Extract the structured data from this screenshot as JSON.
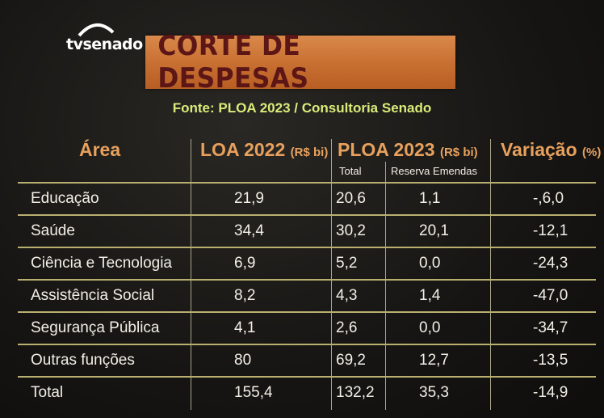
{
  "logo": {
    "text": "tvsenado"
  },
  "title": "CORTE DE DESPESAS",
  "source": "Fonte: PLOA 2023 / Consultoria Senado",
  "headers": {
    "area": "Área",
    "loa": "LOA 2022",
    "loa_unit": "(R$ bi)",
    "ploa": "PLOA 2023",
    "ploa_unit": "(R$ bi)",
    "ploa_total": "Total",
    "ploa_reserva": "Reserva Emendas",
    "variacao": "Variação",
    "variacao_unit": "(%)"
  },
  "rows": [
    {
      "area": "Educação",
      "loa": "21,9",
      "total": "20,6",
      "reserva": "1,1",
      "variacao": "-,6,0"
    },
    {
      "area": "Saúde",
      "loa": "34,4",
      "total": "30,2",
      "reserva": "20,1",
      "variacao": "-12,1"
    },
    {
      "area": "Ciência e Tecnologia",
      "loa": "6,9",
      "total": "5,2",
      "reserva": "0,0",
      "variacao": "-24,3"
    },
    {
      "area": "Assistência Social",
      "loa": "8,2",
      "total": "4,3",
      "reserva": "1,4",
      "variacao": "-47,0"
    },
    {
      "area": "Segurança Pública",
      "loa": "4,1",
      "total": "2,6",
      "reserva": "0,0",
      "variacao": "-34,7"
    },
    {
      "area": "Outras funções",
      "loa": "80",
      "total": "69,2",
      "reserva": "12,7",
      "variacao": "-13,5"
    },
    {
      "area": "Total",
      "loa": "155,4",
      "total": "132,2",
      "reserva": "35,3",
      "variacao": "-14,9"
    }
  ]
}
